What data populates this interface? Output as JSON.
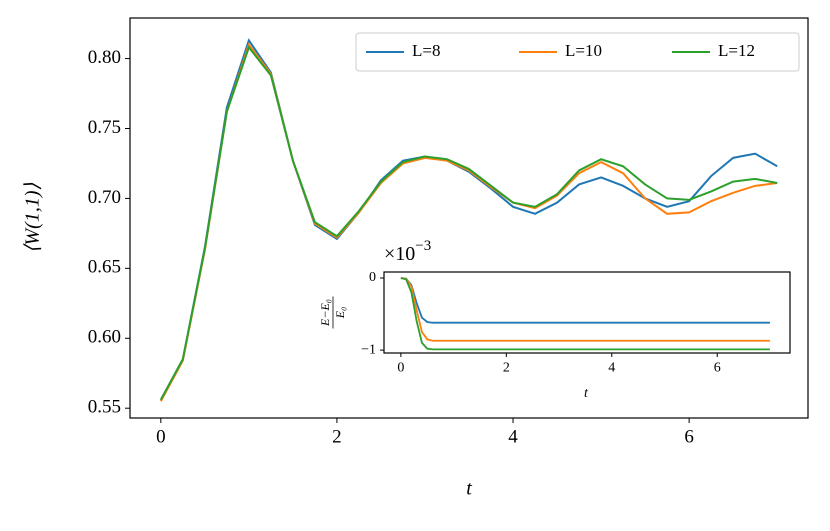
{
  "chart_data": [
    {
      "type": "line",
      "xlabel": "t",
      "ylabel": "⟨W(1,1)⟩",
      "x": [
        0,
        0.25,
        0.5,
        0.75,
        1.0,
        1.25,
        1.5,
        1.75,
        2.0,
        2.25,
        2.5,
        2.75,
        3.0,
        3.25,
        3.5,
        3.75,
        4.0,
        4.25,
        4.5,
        4.75,
        5.0,
        5.25,
        5.5,
        5.75,
        6.0,
        6.25,
        6.5,
        6.75,
        7.0
      ],
      "series": [
        {
          "name": "L=8",
          "color": "#1f77b4",
          "values": [
            0.556,
            0.585,
            0.665,
            0.765,
            0.813,
            0.79,
            0.727,
            0.681,
            0.671,
            0.69,
            0.713,
            0.727,
            0.73,
            0.727,
            0.719,
            0.707,
            0.694,
            0.689,
            0.697,
            0.71,
            0.715,
            0.709,
            0.7,
            0.694,
            0.698,
            0.716,
            0.729,
            0.732,
            0.723
          ]
        },
        {
          "name": "L=10",
          "color": "#ff7f0e",
          "values": [
            0.555,
            0.584,
            0.663,
            0.762,
            0.81,
            0.789,
            0.727,
            0.682,
            0.672,
            0.69,
            0.711,
            0.725,
            0.729,
            0.727,
            0.72,
            0.708,
            0.697,
            0.693,
            0.702,
            0.718,
            0.726,
            0.718,
            0.7,
            0.689,
            0.69,
            0.698,
            0.704,
            0.709,
            0.711
          ]
        },
        {
          "name": "L=12",
          "color": "#2ca02c",
          "values": [
            0.556,
            0.585,
            0.664,
            0.762,
            0.808,
            0.788,
            0.727,
            0.683,
            0.673,
            0.691,
            0.712,
            0.726,
            0.73,
            0.728,
            0.721,
            0.709,
            0.697,
            0.694,
            0.703,
            0.72,
            0.728,
            0.723,
            0.71,
            0.7,
            0.699,
            0.705,
            0.712,
            0.714,
            0.711
          ]
        }
      ],
      "xlim": [
        -0.35,
        7.35
      ],
      "ylim": [
        0.543,
        0.829
      ],
      "xticks": [
        0,
        2,
        4,
        6
      ],
      "yticks": [
        0.55,
        {
          "value": 0.6,
          "label": "0.60"
        },
        0.65,
        {
          "value": 0.7,
          "label": "0.70"
        },
        0.75,
        {
          "value": 0.8,
          "label": "0.80"
        }
      ],
      "legend": "upper right"
    },
    {
      "type": "line",
      "xlabel": "t",
      "ylabel_numerator": "E−E₀",
      "ylabel_denominator": "E₀",
      "offset_text": "×10",
      "offset_exponent": "−3",
      "x": [
        0,
        0.1,
        0.2,
        0.3,
        0.4,
        0.5,
        0.6,
        1,
        2,
        3,
        4,
        5,
        6,
        7
      ],
      "series": [
        {
          "name": "L=8",
          "color": "#1f77b4",
          "values": [
            0,
            -0.01,
            -0.1,
            -0.35,
            -0.55,
            -0.61,
            -0.62,
            -0.62,
            -0.62,
            -0.62,
            -0.62,
            -0.62,
            -0.62,
            -0.62
          ]
        },
        {
          "name": "L=10",
          "color": "#ff7f0e",
          "values": [
            0,
            -0.01,
            -0.12,
            -0.45,
            -0.75,
            -0.85,
            -0.87,
            -0.87,
            -0.87,
            -0.87,
            -0.87,
            -0.87,
            -0.87,
            -0.87
          ]
        },
        {
          "name": "L=12",
          "color": "#2ca02c",
          "values": [
            0,
            -0.02,
            -0.2,
            -0.6,
            -0.9,
            -0.98,
            -0.99,
            -0.99,
            -0.99,
            -0.99,
            -0.99,
            -0.99,
            -0.99,
            -0.99
          ]
        }
      ],
      "xlim": [
        -0.32,
        7.38
      ],
      "ylim": [
        -1.04,
        0.083
      ],
      "xticks": [
        0,
        2,
        4,
        6
      ],
      "yticks": [
        0,
        {
          "value": -1,
          "label": "−1"
        }
      ]
    }
  ]
}
